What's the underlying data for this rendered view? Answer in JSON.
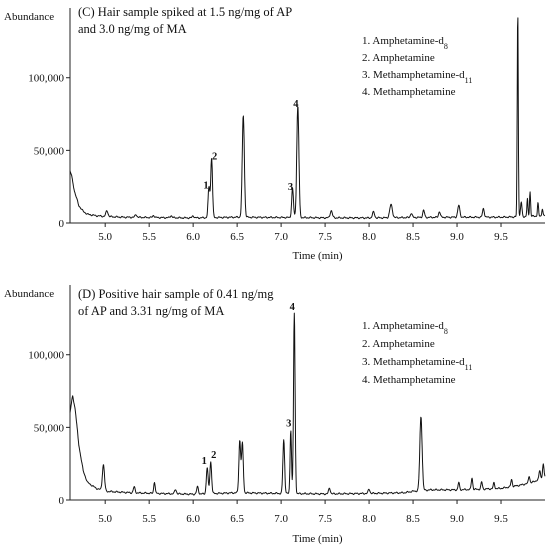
{
  "chart_data": [
    {
      "type": "line",
      "panel_title": [
        "(C) Hair sample spiked at 1.5 ng/mg of AP",
        "and  3.0 ng/mg of MA"
      ],
      "ylabel": "Abundance",
      "xlabel": "Time (min)",
      "xlim": [
        4.6,
        10.0
      ],
      "ylim": [
        0,
        148000
      ],
      "xticks": [
        5.0,
        5.5,
        6.0,
        6.5,
        7.0,
        7.5,
        8.0,
        8.5,
        9.0,
        9.5
      ],
      "xtick_labels": [
        "5.0",
        "5.5",
        "6.0",
        "6.5",
        "7.0",
        "7.5",
        "8.0",
        "8.5",
        "9.0",
        "9.5"
      ],
      "yticks": [
        0,
        50000,
        100000
      ],
      "ytick_labels": [
        "0",
        "50,000",
        "100,000"
      ],
      "legend": [
        "1. Amphetamine-d",
        "2. Amphetamine",
        "3. Methamphetamine-d",
        "4. Methamphetamine"
      ],
      "legend_subscripts": [
        "8",
        "",
        "11",
        ""
      ],
      "baseline": [
        [
          4.6,
          36000
        ],
        [
          4.62,
          32000
        ],
        [
          4.65,
          22000
        ],
        [
          4.7,
          12000
        ],
        [
          4.75,
          8000
        ],
        [
          4.8,
          6000
        ],
        [
          4.9,
          5000
        ],
        [
          5.0,
          4500
        ],
        [
          5.2,
          4000
        ],
        [
          5.5,
          3800
        ],
        [
          5.8,
          3600
        ],
        [
          6.0,
          3500
        ],
        [
          6.5,
          4000
        ],
        [
          7.0,
          3800
        ],
        [
          7.5,
          3600
        ],
        [
          8.0,
          3500
        ],
        [
          8.5,
          3800
        ],
        [
          9.0,
          4000
        ],
        [
          9.5,
          4000
        ],
        [
          9.65,
          4200
        ],
        [
          9.8,
          4500
        ],
        [
          10.0,
          5000
        ]
      ],
      "peaks": [
        {
          "x": 5.02,
          "y": 4000,
          "w": 0.012
        },
        {
          "x": 5.35,
          "y": 2000,
          "w": 0.01
        },
        {
          "x": 5.55,
          "y": 1500,
          "w": 0.01
        },
        {
          "x": 5.75,
          "y": 1500,
          "w": 0.01
        },
        {
          "x": 6.0,
          "y": 1500,
          "w": 0.01
        },
        {
          "x": 6.18,
          "y": 21000,
          "w": 0.01
        },
        {
          "x": 6.21,
          "y": 41000,
          "w": 0.01
        },
        {
          "x": 6.57,
          "y": 70000,
          "w": 0.012
        },
        {
          "x": 7.13,
          "y": 20000,
          "w": 0.01
        },
        {
          "x": 7.19,
          "y": 77000,
          "w": 0.012
        },
        {
          "x": 7.57,
          "y": 5000,
          "w": 0.012
        },
        {
          "x": 8.05,
          "y": 4000,
          "w": 0.012
        },
        {
          "x": 8.25,
          "y": 9000,
          "w": 0.015
        },
        {
          "x": 8.48,
          "y": 3000,
          "w": 0.01
        },
        {
          "x": 8.62,
          "y": 5000,
          "w": 0.01
        },
        {
          "x": 8.8,
          "y": 4000,
          "w": 0.01
        },
        {
          "x": 9.02,
          "y": 8000,
          "w": 0.012
        },
        {
          "x": 9.3,
          "y": 6000,
          "w": 0.01
        },
        {
          "x": 9.69,
          "y": 141000,
          "w": 0.006
        },
        {
          "x": 9.73,
          "y": 10000,
          "w": 0.008
        },
        {
          "x": 9.8,
          "y": 12000,
          "w": 0.006
        },
        {
          "x": 9.83,
          "y": 17000,
          "w": 0.006
        },
        {
          "x": 9.92,
          "y": 9000,
          "w": 0.006
        },
        {
          "x": 9.97,
          "y": 5000,
          "w": 0.006
        }
      ],
      "peak_labels": [
        {
          "text": "1",
          "x": 6.18,
          "y": 21000
        },
        {
          "text": "2",
          "x": 6.21,
          "y": 41000
        },
        {
          "text": "3",
          "x": 7.13,
          "y": 20000
        },
        {
          "text": "4",
          "x": 7.19,
          "y": 77000
        }
      ]
    },
    {
      "type": "line",
      "panel_title": [
        "(D) Positive hair sample of 0.41 ng/mg",
        "of AP and 3.31 ng/mg of MA"
      ],
      "ylabel": "Abundance",
      "xlabel": "Time (min)",
      "xlim": [
        4.6,
        10.0
      ],
      "ylim": [
        0,
        148000
      ],
      "xticks": [
        5.0,
        5.5,
        6.0,
        6.5,
        7.0,
        7.5,
        8.0,
        8.5,
        9.0,
        9.5
      ],
      "xtick_labels": [
        "5.0",
        "5.5",
        "6.0",
        "6.5",
        "7.0",
        "7.5",
        "8.0",
        "8.5",
        "9.0",
        "9.5"
      ],
      "yticks": [
        0,
        50000,
        100000
      ],
      "ytick_labels": [
        "0",
        "50,000",
        "100,000"
      ],
      "legend": [
        "1. Amphetamine-d",
        "2. Amphetamine",
        "3. Methamphetamine-d",
        "4. Methamphetamine"
      ],
      "legend_subscripts": [
        "8",
        "",
        "11",
        ""
      ],
      "baseline": [
        [
          4.6,
          60000
        ],
        [
          4.63,
          72000
        ],
        [
          4.66,
          62000
        ],
        [
          4.7,
          38000
        ],
        [
          4.75,
          20000
        ],
        [
          4.8,
          12000
        ],
        [
          4.9,
          8000
        ],
        [
          5.0,
          6000
        ],
        [
          5.3,
          5000
        ],
        [
          5.6,
          4500
        ],
        [
          6.0,
          4000
        ],
        [
          6.5,
          5000
        ],
        [
          7.0,
          4500
        ],
        [
          7.5,
          4200
        ],
        [
          8.0,
          4500
        ],
        [
          8.4,
          5000
        ],
        [
          8.5,
          6000
        ],
        [
          8.7,
          7000
        ],
        [
          9.0,
          7000
        ],
        [
          9.3,
          7500
        ],
        [
          9.5,
          8000
        ],
        [
          9.7,
          10000
        ],
        [
          9.85,
          12000
        ],
        [
          10.0,
          16000
        ]
      ],
      "peaks": [
        {
          "x": 4.98,
          "y": 18000,
          "w": 0.012
        },
        {
          "x": 5.33,
          "y": 4000,
          "w": 0.01
        },
        {
          "x": 5.56,
          "y": 8000,
          "w": 0.008
        },
        {
          "x": 5.8,
          "y": 3000,
          "w": 0.01
        },
        {
          "x": 6.05,
          "y": 5000,
          "w": 0.01
        },
        {
          "x": 6.16,
          "y": 18000,
          "w": 0.01
        },
        {
          "x": 6.2,
          "y": 22000,
          "w": 0.01
        },
        {
          "x": 6.53,
          "y": 36000,
          "w": 0.01
        },
        {
          "x": 6.56,
          "y": 34000,
          "w": 0.01
        },
        {
          "x": 7.03,
          "y": 37000,
          "w": 0.01
        },
        {
          "x": 7.11,
          "y": 44000,
          "w": 0.008
        },
        {
          "x": 7.15,
          "y": 124000,
          "w": 0.009
        },
        {
          "x": 7.55,
          "y": 4000,
          "w": 0.01
        },
        {
          "x": 8.0,
          "y": 3000,
          "w": 0.01
        },
        {
          "x": 8.59,
          "y": 51000,
          "w": 0.013
        },
        {
          "x": 9.02,
          "y": 5000,
          "w": 0.008
        },
        {
          "x": 9.17,
          "y": 8000,
          "w": 0.008
        },
        {
          "x": 9.28,
          "y": 5000,
          "w": 0.008
        },
        {
          "x": 9.42,
          "y": 4000,
          "w": 0.008
        },
        {
          "x": 9.62,
          "y": 5000,
          "w": 0.008
        },
        {
          "x": 9.82,
          "y": 5000,
          "w": 0.008
        },
        {
          "x": 9.94,
          "y": 6000,
          "w": 0.008
        },
        {
          "x": 9.98,
          "y": 9000,
          "w": 0.008
        }
      ],
      "peak_labels": [
        {
          "text": "1",
          "x": 6.16,
          "y": 22000
        },
        {
          "text": "2",
          "x": 6.2,
          "y": 26000
        },
        {
          "text": "3",
          "x": 7.11,
          "y": 48000
        },
        {
          "text": "4",
          "x": 7.15,
          "y": 128000
        }
      ]
    }
  ]
}
